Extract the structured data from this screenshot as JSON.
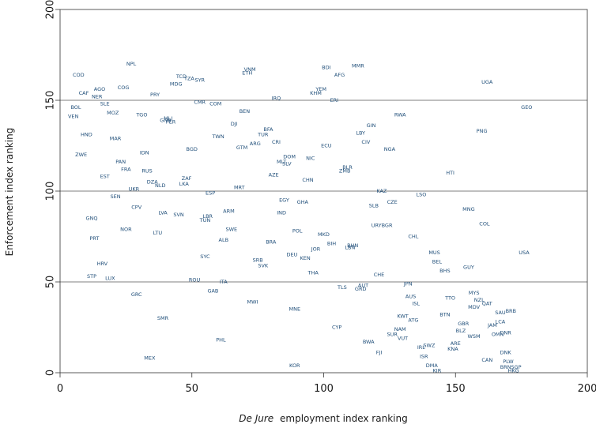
{
  "chart_data": {
    "type": "scatter",
    "title": "",
    "xlabel_italic": "De Jure",
    "xlabel_rest": "employment index ranking",
    "ylabel": "Enforcement index ranking",
    "xlim": [
      0,
      200
    ],
    "ylim": [
      0,
      200
    ],
    "xticks": [
      0,
      50,
      100,
      150,
      200
    ],
    "yticks": [
      0,
      50,
      100,
      150,
      200
    ],
    "grid": "horizontal",
    "points": [
      {
        "label": "NPL",
        "x": 27,
        "y": 170
      },
      {
        "label": "COD",
        "x": 7,
        "y": 164
      },
      {
        "label": "AGO",
        "x": 15,
        "y": 156
      },
      {
        "label": "COG",
        "x": 24,
        "y": 157
      },
      {
        "label": "CAF",
        "x": 9,
        "y": 154
      },
      {
        "label": "NER",
        "x": 14,
        "y": 152
      },
      {
        "label": "SLE",
        "x": 17,
        "y": 148
      },
      {
        "label": "BOL",
        "x": 6,
        "y": 146
      },
      {
        "label": "MOZ",
        "x": 20,
        "y": 143
      },
      {
        "label": "TGO",
        "x": 31,
        "y": 142
      },
      {
        "label": "VEN",
        "x": 5,
        "y": 141
      },
      {
        "label": "PRY",
        "x": 36,
        "y": 153
      },
      {
        "label": "TCD",
        "x": 46,
        "y": 163
      },
      {
        "label": "TZA",
        "x": 49,
        "y": 162
      },
      {
        "label": "SYR",
        "x": 53,
        "y": 161
      },
      {
        "label": "MDG",
        "x": 44,
        "y": 159
      },
      {
        "label": "VNM",
        "x": 72,
        "y": 167
      },
      {
        "label": "ETH",
        "x": 71,
        "y": 165
      },
      {
        "label": "BDI",
        "x": 101,
        "y": 168
      },
      {
        "label": "MMR",
        "x": 113,
        "y": 169
      },
      {
        "label": "AFG",
        "x": 106,
        "y": 164
      },
      {
        "label": "UGA",
        "x": 162,
        "y": 160
      },
      {
        "label": "YEM",
        "x": 99,
        "y": 156
      },
      {
        "label": "KHM",
        "x": 97,
        "y": 154
      },
      {
        "label": "ERI",
        "x": 104,
        "y": 150
      },
      {
        "label": "IRQ",
        "x": 82,
        "y": 151
      },
      {
        "label": "CMR",
        "x": 53,
        "y": 149
      },
      {
        "label": "COM",
        "x": 59,
        "y": 148
      },
      {
        "label": "BEN",
        "x": 70,
        "y": 144
      },
      {
        "label": "GEO",
        "x": 177,
        "y": 146
      },
      {
        "label": "RWA",
        "x": 129,
        "y": 142
      },
      {
        "label": "GNB",
        "x": 40,
        "y": 139
      },
      {
        "label": "MLI",
        "x": 41,
        "y": 140
      },
      {
        "label": "PER",
        "x": 42,
        "y": 138
      },
      {
        "label": "DJI",
        "x": 66,
        "y": 137
      },
      {
        "label": "GIN",
        "x": 118,
        "y": 136
      },
      {
        "label": "LBY",
        "x": 114,
        "y": 132
      },
      {
        "label": "HND",
        "x": 10,
        "y": 131
      },
      {
        "label": "MAR",
        "x": 21,
        "y": 129
      },
      {
        "label": "TWN",
        "x": 60,
        "y": 130
      },
      {
        "label": "BFA",
        "x": 79,
        "y": 134
      },
      {
        "label": "TUR",
        "x": 77,
        "y": 131
      },
      {
        "label": "PNG",
        "x": 160,
        "y": 133
      },
      {
        "label": "CIV",
        "x": 116,
        "y": 127
      },
      {
        "label": "CRI",
        "x": 82,
        "y": 127
      },
      {
        "label": "ARG",
        "x": 74,
        "y": 126
      },
      {
        "label": "GTM",
        "x": 69,
        "y": 124
      },
      {
        "label": "BGD",
        "x": 50,
        "y": 123
      },
      {
        "label": "ECU",
        "x": 101,
        "y": 125
      },
      {
        "label": "NGA",
        "x": 125,
        "y": 123
      },
      {
        "label": "ZWE",
        "x": 8,
        "y": 120
      },
      {
        "label": "IDN",
        "x": 32,
        "y": 121
      },
      {
        "label": "PAN",
        "x": 23,
        "y": 116
      },
      {
        "label": "DOM",
        "x": 87,
        "y": 119
      },
      {
        "label": "NIC",
        "x": 95,
        "y": 118
      },
      {
        "label": "MLT",
        "x": 84,
        "y": 116
      },
      {
        "label": "SLV",
        "x": 86,
        "y": 115
      },
      {
        "label": "FRA",
        "x": 25,
        "y": 112
      },
      {
        "label": "RUS",
        "x": 33,
        "y": 111
      },
      {
        "label": "BLR",
        "x": 109,
        "y": 113
      },
      {
        "label": "ZMB",
        "x": 108,
        "y": 111
      },
      {
        "label": "HTI",
        "x": 148,
        "y": 110
      },
      {
        "label": "EST",
        "x": 17,
        "y": 108
      },
      {
        "label": "AZE",
        "x": 81,
        "y": 109
      },
      {
        "label": "ZAF",
        "x": 48,
        "y": 107
      },
      {
        "label": "DZA",
        "x": 35,
        "y": 105
      },
      {
        "label": "LKA",
        "x": 47,
        "y": 104
      },
      {
        "label": "NLD",
        "x": 38,
        "y": 103
      },
      {
        "label": "CHN",
        "x": 94,
        "y": 106
      },
      {
        "label": "MRT",
        "x": 68,
        "y": 102
      },
      {
        "label": "UKR",
        "x": 28,
        "y": 101
      },
      {
        "label": "ESP",
        "x": 57,
        "y": 99
      },
      {
        "label": "KAZ",
        "x": 122,
        "y": 100
      },
      {
        "label": "LSO",
        "x": 137,
        "y": 98
      },
      {
        "label": "SEN",
        "x": 21,
        "y": 97
      },
      {
        "label": "EGY",
        "x": 85,
        "y": 95
      },
      {
        "label": "GHA",
        "x": 92,
        "y": 94
      },
      {
        "label": "CZE",
        "x": 126,
        "y": 94
      },
      {
        "label": "SLB",
        "x": 119,
        "y": 92
      },
      {
        "label": "CPV",
        "x": 29,
        "y": 91
      },
      {
        "label": "MNG",
        "x": 155,
        "y": 90
      },
      {
        "label": "LVA",
        "x": 39,
        "y": 88
      },
      {
        "label": "ARM",
        "x": 64,
        "y": 89
      },
      {
        "label": "IND",
        "x": 84,
        "y": 88
      },
      {
        "label": "SVN",
        "x": 45,
        "y": 87
      },
      {
        "label": "GNQ",
        "x": 12,
        "y": 85
      },
      {
        "label": "LBR",
        "x": 56,
        "y": 86
      },
      {
        "label": "TUN",
        "x": 55,
        "y": 84
      },
      {
        "label": "COL",
        "x": 161,
        "y": 82
      },
      {
        "label": "URY",
        "x": 120,
        "y": 81
      },
      {
        "label": "BGR",
        "x": 124,
        "y": 81
      },
      {
        "label": "NOR",
        "x": 25,
        "y": 79
      },
      {
        "label": "LTU",
        "x": 37,
        "y": 77
      },
      {
        "label": "SWE",
        "x": 65,
        "y": 79
      },
      {
        "label": "POL",
        "x": 90,
        "y": 78
      },
      {
        "label": "MKD",
        "x": 100,
        "y": 76
      },
      {
        "label": "CHL",
        "x": 134,
        "y": 75
      },
      {
        "label": "PRT",
        "x": 13,
        "y": 74
      },
      {
        "label": "ALB",
        "x": 62,
        "y": 73
      },
      {
        "label": "BRA",
        "x": 80,
        "y": 72
      },
      {
        "label": "BIH",
        "x": 103,
        "y": 71
      },
      {
        "label": "BHN",
        "x": 111,
        "y": 70
      },
      {
        "label": "LBN",
        "x": 110,
        "y": 69
      },
      {
        "label": "JOR",
        "x": 97,
        "y": 68
      },
      {
        "label": "USA",
        "x": 176,
        "y": 66
      },
      {
        "label": "MUS",
        "x": 142,
        "y": 66
      },
      {
        "label": "DEU",
        "x": 88,
        "y": 65
      },
      {
        "label": "KEN",
        "x": 93,
        "y": 63
      },
      {
        "label": "SYC",
        "x": 55,
        "y": 64
      },
      {
        "label": "SRB",
        "x": 75,
        "y": 62
      },
      {
        "label": "BEL",
        "x": 143,
        "y": 61
      },
      {
        "label": "SVK",
        "x": 77,
        "y": 59
      },
      {
        "label": "HRV",
        "x": 16,
        "y": 60
      },
      {
        "label": "GUY",
        "x": 155,
        "y": 58
      },
      {
        "label": "BHS",
        "x": 146,
        "y": 56
      },
      {
        "label": "THA",
        "x": 96,
        "y": 55
      },
      {
        "label": "CHE",
        "x": 121,
        "y": 54
      },
      {
        "label": "STP",
        "x": 12,
        "y": 53
      },
      {
        "label": "LUX",
        "x": 19,
        "y": 52
      },
      {
        "label": "ROU",
        "x": 51,
        "y": 51
      },
      {
        "label": "ITA",
        "x": 62,
        "y": 50
      },
      {
        "label": "JPN",
        "x": 132,
        "y": 49
      },
      {
        "label": "TLS",
        "x": 107,
        "y": 47
      },
      {
        "label": "AUT",
        "x": 115,
        "y": 48
      },
      {
        "label": "GRD",
        "x": 114,
        "y": 46
      },
      {
        "label": "GAB",
        "x": 58,
        "y": 45
      },
      {
        "label": "GRC",
        "x": 29,
        "y": 43
      },
      {
        "label": "MYS",
        "x": 157,
        "y": 44
      },
      {
        "label": "MWI",
        "x": 73,
        "y": 39
      },
      {
        "label": "AUS",
        "x": 133,
        "y": 42
      },
      {
        "label": "TTO",
        "x": 148,
        "y": 41
      },
      {
        "label": "NZL",
        "x": 159,
        "y": 40
      },
      {
        "label": "ISL",
        "x": 135,
        "y": 38
      },
      {
        "label": "QAT",
        "x": 162,
        "y": 38
      },
      {
        "label": "MDV",
        "x": 157,
        "y": 36
      },
      {
        "label": "MNE",
        "x": 89,
        "y": 35
      },
      {
        "label": "BRB",
        "x": 171,
        "y": 34
      },
      {
        "label": "SAU",
        "x": 167,
        "y": 33
      },
      {
        "label": "BTN",
        "x": 146,
        "y": 32
      },
      {
        "label": "KWT",
        "x": 130,
        "y": 31
      },
      {
        "label": "SMR",
        "x": 39,
        "y": 30
      },
      {
        "label": "ATG",
        "x": 134,
        "y": 29
      },
      {
        "label": "GBR",
        "x": 153,
        "y": 27
      },
      {
        "label": "LCA",
        "x": 167,
        "y": 28
      },
      {
        "label": "CYP",
        "x": 105,
        "y": 25
      },
      {
        "label": "JAM",
        "x": 164,
        "y": 26
      },
      {
        "label": "NAM",
        "x": 129,
        "y": 24
      },
      {
        "label": "BLZ",
        "x": 152,
        "y": 23
      },
      {
        "label": "OMN",
        "x": 166,
        "y": 21
      },
      {
        "label": "DNR",
        "x": 169,
        "y": 22
      },
      {
        "label": "SUR",
        "x": 126,
        "y": 21
      },
      {
        "label": "VUT",
        "x": 130,
        "y": 19
      },
      {
        "label": "WSM",
        "x": 157,
        "y": 20
      },
      {
        "label": "BWA",
        "x": 117,
        "y": 17
      },
      {
        "label": "PHL",
        "x": 61,
        "y": 18
      },
      {
        "label": "ARE",
        "x": 150,
        "y": 16
      },
      {
        "label": "SWZ",
        "x": 140,
        "y": 15
      },
      {
        "label": "IRL",
        "x": 137,
        "y": 14
      },
      {
        "label": "KNA",
        "x": 149,
        "y": 13
      },
      {
        "label": "FJI",
        "x": 121,
        "y": 11
      },
      {
        "label": "DNK",
        "x": 169,
        "y": 11
      },
      {
        "label": "ISR",
        "x": 138,
        "y": 9
      },
      {
        "label": "MEX",
        "x": 34,
        "y": 8
      },
      {
        "label": "CAN",
        "x": 162,
        "y": 7
      },
      {
        "label": "PLW",
        "x": 170,
        "y": 6
      },
      {
        "label": "KOR",
        "x": 89,
        "y": 4
      },
      {
        "label": "DMA",
        "x": 141,
        "y": 4
      },
      {
        "label": "BRN",
        "x": 169,
        "y": 3
      },
      {
        "label": "SGP",
        "x": 173,
        "y": 3
      },
      {
        "label": "KIR",
        "x": 143,
        "y": 1
      },
      {
        "label": "HKG",
        "x": 172,
        "y": 1
      }
    ]
  }
}
